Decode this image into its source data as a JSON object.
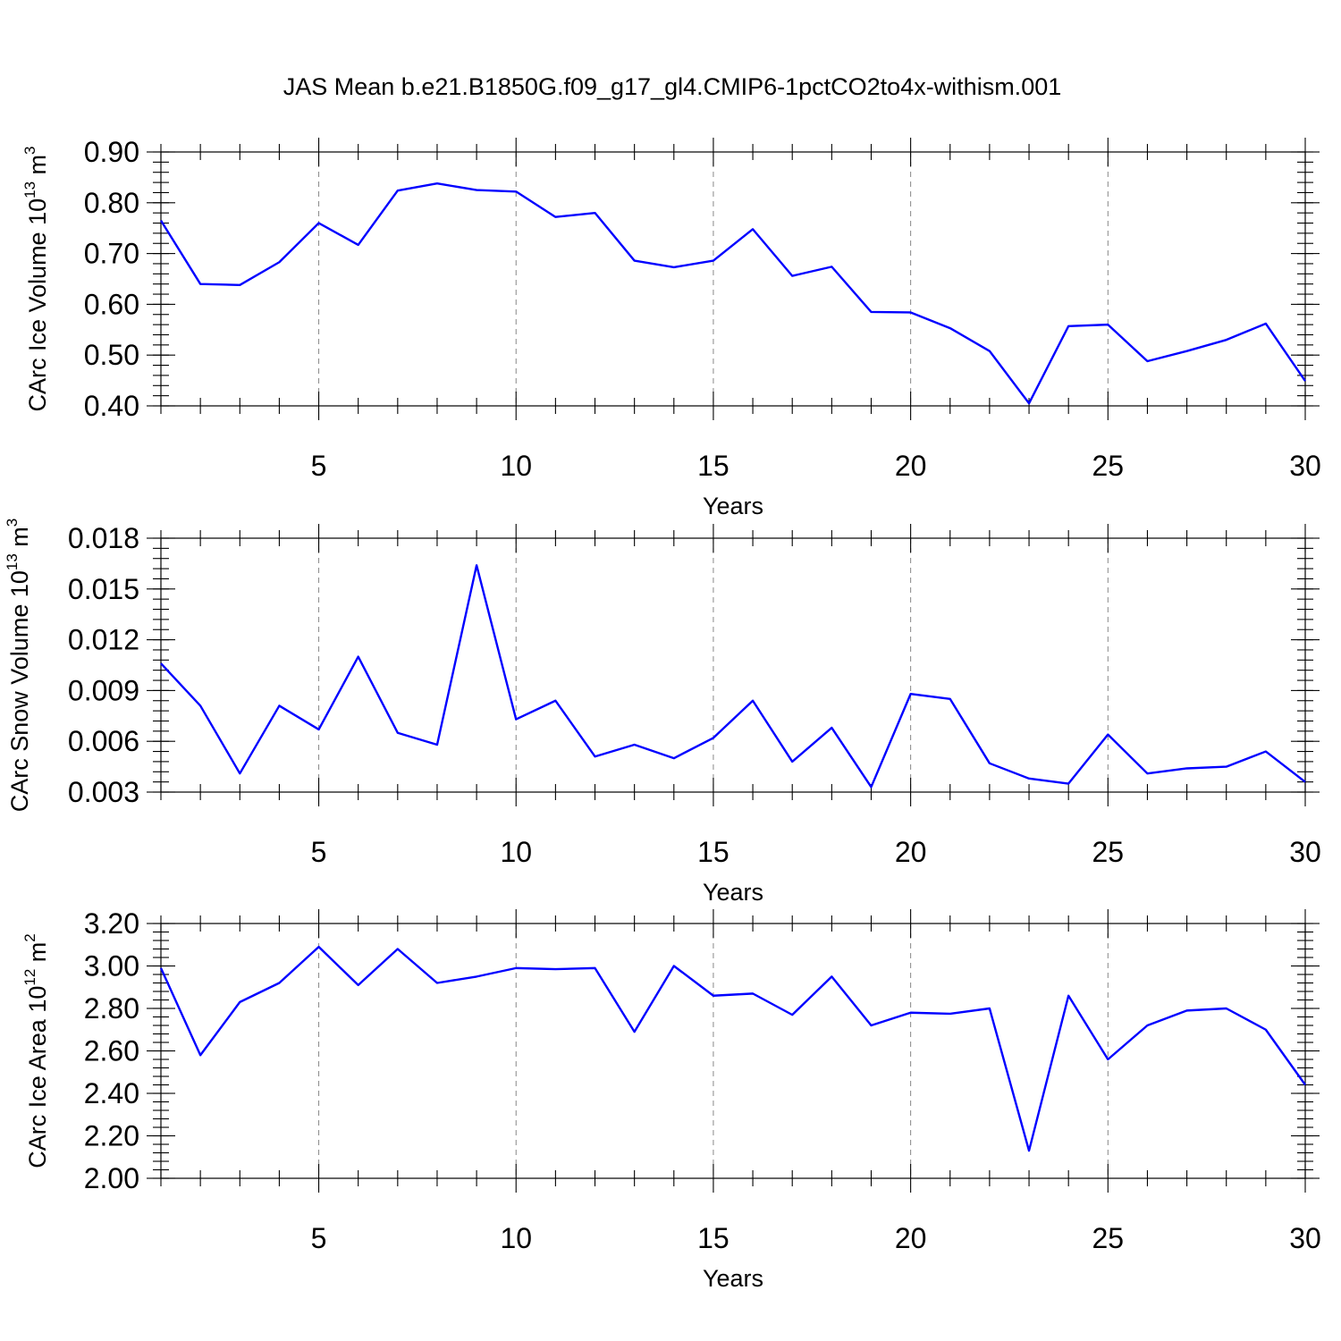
{
  "title": "JAS Mean b.e21.B1850G.f09_g17_gl4.CMIP6-1pctCO2to4x-withism.001",
  "colors": {
    "series": "#0000ff",
    "grid": "#888888",
    "axes": "#000000"
  },
  "chart_data": [
    {
      "type": "line",
      "xlabel": "Years",
      "ylabel": {
        "text": "CArc Ice Volume 10",
        "exp": "13",
        "unit": " m",
        "unit_exp": "3"
      },
      "xlim": [
        1,
        30
      ],
      "ylim": [
        0.4,
        0.9
      ],
      "x_major_ticks": [
        5,
        10,
        15,
        20,
        25,
        30
      ],
      "x_tick_labels": [
        "5",
        "10",
        "15",
        "20",
        "25",
        "30"
      ],
      "y_major_ticks": [
        0.4,
        0.5,
        0.6,
        0.7,
        0.8,
        0.9
      ],
      "y_tick_labels": [
        "0.40",
        "0.50",
        "0.60",
        "0.70",
        "0.80",
        "0.90"
      ],
      "y_minor_step": 0.02,
      "grid": "dashed vertical at x major ticks",
      "x": [
        1,
        2,
        3,
        4,
        5,
        6,
        7,
        8,
        9,
        10,
        11,
        12,
        13,
        14,
        15,
        16,
        17,
        18,
        19,
        20,
        21,
        22,
        23,
        24,
        25,
        26,
        27,
        28,
        29,
        30
      ],
      "series": [
        {
          "values": [
            0.765,
            0.64,
            0.638,
            0.683,
            0.76,
            0.717,
            0.824,
            0.838,
            0.825,
            0.822,
            0.772,
            0.78,
            0.686,
            0.673,
            0.686,
            0.748,
            0.656,
            0.674,
            0.585,
            0.584,
            0.553,
            0.508,
            0.405,
            0.557,
            0.56,
            0.488,
            0.508,
            0.53,
            0.562,
            0.449
          ]
        }
      ]
    },
    {
      "type": "line",
      "xlabel": "Years",
      "ylabel": {
        "text": "CArc Snow Volume 10",
        "exp": "13",
        "unit": " m",
        "unit_exp": "3"
      },
      "xlim": [
        1,
        30
      ],
      "ylim": [
        0.003,
        0.018
      ],
      "x_major_ticks": [
        5,
        10,
        15,
        20,
        25,
        30
      ],
      "x_tick_labels": [
        "5",
        "10",
        "15",
        "20",
        "25",
        "30"
      ],
      "y_major_ticks": [
        0.003,
        0.006,
        0.009,
        0.012,
        0.015,
        0.018
      ],
      "y_tick_labels": [
        "0.003",
        "0.006",
        "0.009",
        "0.012",
        "0.015",
        "0.018"
      ],
      "y_minor_step": 0.0006,
      "grid": "dashed vertical at x major ticks",
      "x": [
        1,
        2,
        3,
        4,
        5,
        6,
        7,
        8,
        9,
        10,
        11,
        12,
        13,
        14,
        15,
        16,
        17,
        18,
        19,
        20,
        21,
        22,
        23,
        24,
        25,
        26,
        27,
        28,
        29,
        30
      ],
      "series": [
        {
          "values": [
            0.0106,
            0.0081,
            0.0041,
            0.0081,
            0.0067,
            0.011,
            0.0065,
            0.0058,
            0.0164,
            0.0073,
            0.0084,
            0.0051,
            0.0058,
            0.005,
            0.0062,
            0.0084,
            0.0048,
            0.0068,
            0.0033,
            0.0088,
            0.0085,
            0.0047,
            0.0038,
            0.0035,
            0.0064,
            0.0041,
            0.0044,
            0.0045,
            0.0054,
            0.0036
          ]
        }
      ]
    },
    {
      "type": "line",
      "xlabel": "Years",
      "ylabel": {
        "text": "CArc Ice Area 10",
        "exp": "12",
        "unit": " m",
        "unit_exp": "2"
      },
      "xlim": [
        1,
        30
      ],
      "ylim": [
        2.0,
        3.2
      ],
      "x_major_ticks": [
        5,
        10,
        15,
        20,
        25,
        30
      ],
      "x_tick_labels": [
        "5",
        "10",
        "15",
        "20",
        "25",
        "30"
      ],
      "y_major_ticks": [
        2.0,
        2.2,
        2.4,
        2.6,
        2.8,
        3.0,
        3.2
      ],
      "y_tick_labels": [
        "2.00",
        "2.20",
        "2.40",
        "2.60",
        "2.80",
        "3.00",
        "3.20"
      ],
      "y_minor_step": 0.04,
      "grid": "dashed vertical at x major ticks",
      "x": [
        1,
        2,
        3,
        4,
        5,
        6,
        7,
        8,
        9,
        10,
        11,
        12,
        13,
        14,
        15,
        16,
        17,
        18,
        19,
        20,
        21,
        22,
        23,
        24,
        25,
        26,
        27,
        28,
        29,
        30
      ],
      "series": [
        {
          "values": [
            2.99,
            2.58,
            2.83,
            2.92,
            3.09,
            2.91,
            3.08,
            2.92,
            2.95,
            2.99,
            2.985,
            2.99,
            2.69,
            3.0,
            2.86,
            2.87,
            2.77,
            2.95,
            2.72,
            2.78,
            2.775,
            2.8,
            2.13,
            2.86,
            2.56,
            2.72,
            2.79,
            2.8,
            2.7,
            2.44
          ]
        }
      ]
    }
  ]
}
